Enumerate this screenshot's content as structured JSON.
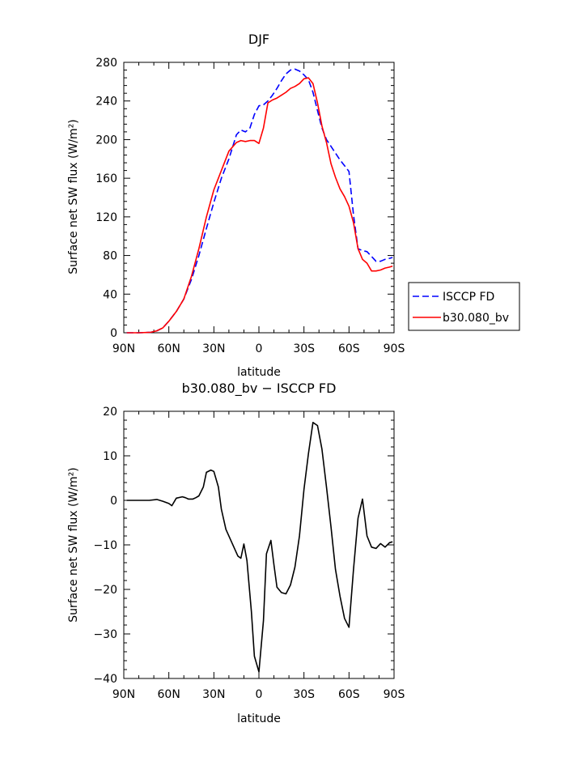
{
  "chart_data": [
    {
      "type": "line",
      "title": "DJF",
      "xlabel": "latitude",
      "ylabel": "Surface net SW flux (W/m²)",
      "x_ticks": [
        "90N",
        "60N",
        "30N",
        "0",
        "30S",
        "60S",
        "90S"
      ],
      "xlim": [
        -90,
        90
      ],
      "ylim": [
        0,
        280
      ],
      "y_ticks": [
        0,
        40,
        80,
        120,
        160,
        200,
        240,
        280
      ],
      "x_note": "x values are latitude in degrees; negative = N, positive = S",
      "legend_position": "right",
      "series": [
        {
          "name": "ISCCP FD",
          "color": "#0000ff",
          "dash": "dashed",
          "x": [
            -88,
            -80,
            -72,
            -68,
            -64,
            -60,
            -55,
            -50,
            -45,
            -40,
            -35,
            -30,
            -25,
            -20,
            -15,
            -12,
            -9,
            -6,
            -3,
            0,
            3,
            6,
            9,
            12,
            15,
            18,
            21,
            24,
            27,
            30,
            33,
            36,
            39,
            42,
            45,
            48,
            51,
            54,
            57,
            60,
            63,
            66,
            69,
            72,
            75,
            78,
            81,
            84,
            87,
            89
          ],
          "y": [
            0,
            0,
            0.5,
            2,
            5,
            12,
            22,
            35,
            55,
            80,
            108,
            135,
            160,
            180,
            205,
            210,
            208,
            212,
            226,
            235,
            236,
            240,
            246,
            253,
            261,
            268,
            272,
            273,
            271,
            267,
            262,
            249,
            230,
            212,
            200,
            193,
            186,
            179,
            173,
            167,
            122,
            87,
            85,
            84,
            79,
            74,
            74,
            76,
            77,
            78
          ]
        },
        {
          "name": "b30.080_bv",
          "color": "#ff0000",
          "dash": "solid",
          "x": [
            -88,
            -80,
            -72,
            -68,
            -64,
            -60,
            -55,
            -50,
            -45,
            -40,
            -35,
            -30,
            -25,
            -20,
            -15,
            -12,
            -9,
            -6,
            -3,
            0,
            3,
            6,
            9,
            12,
            15,
            18,
            21,
            24,
            27,
            30,
            33,
            36,
            39,
            42,
            45,
            48,
            51,
            54,
            57,
            60,
            63,
            66,
            69,
            72,
            75,
            78,
            81,
            84,
            87,
            89
          ],
          "y": [
            0,
            0,
            0.5,
            2,
            5,
            12,
            22,
            35,
            58,
            87,
            120,
            148,
            168,
            188,
            197,
            199,
            198,
            199,
            199,
            196,
            212,
            238,
            241,
            243,
            246,
            249,
            253,
            255,
            258,
            263,
            264,
            258,
            238,
            214,
            197,
            175,
            161,
            149,
            141,
            131,
            114,
            87,
            76,
            72,
            64,
            64,
            65,
            67,
            68,
            69
          ]
        }
      ]
    },
    {
      "type": "line",
      "title": "b30.080_bv − ISCCP FD",
      "xlabel": "latitude",
      "ylabel": "Surface net SW flux (W/m²)",
      "x_ticks": [
        "90N",
        "60N",
        "30N",
        "0",
        "30S",
        "60S",
        "90S"
      ],
      "xlim": [
        -90,
        90
      ],
      "ylim": [
        -40,
        20
      ],
      "y_ticks": [
        -40,
        -30,
        -20,
        -10,
        0,
        10,
        20
      ],
      "x_note": "x values are latitude in degrees; negative = N, positive = S",
      "series": [
        {
          "color": "#000000",
          "dash": "solid",
          "x": [
            -88,
            -80,
            -73,
            -68,
            -64,
            -60,
            -58,
            -55,
            -51,
            -49,
            -47,
            -44,
            -42,
            -40,
            -37,
            -35,
            -32,
            -30,
            -27,
            -25,
            -22,
            -18,
            -14,
            -12,
            -10,
            -8,
            -5,
            -3,
            0,
            3,
            5,
            8,
            10,
            12,
            15,
            18,
            21,
            24,
            27,
            30,
            33,
            36,
            39,
            42,
            45,
            48,
            51,
            54,
            57,
            60,
            63,
            66,
            69,
            72,
            75,
            78,
            81,
            84,
            87,
            89
          ],
          "y": [
            0,
            0,
            0,
            0.2,
            -0.2,
            -0.7,
            -1.2,
            0.5,
            0.8,
            0.6,
            0.3,
            0.3,
            0.6,
            1.0,
            3.0,
            6.3,
            6.8,
            6.5,
            3.0,
            -2.0,
            -6.5,
            -9.5,
            -12.5,
            -13.0,
            -9.8,
            -13.5,
            -25.0,
            -35.0,
            -38.5,
            -27.0,
            -12.0,
            -9.0,
            -14.5,
            -19.5,
            -20.7,
            -21.0,
            -19.0,
            -15.0,
            -8.0,
            2.5,
            10.5,
            17.5,
            16.8,
            11.5,
            3.0,
            -6.0,
            -15.5,
            -21.5,
            -26.5,
            -28.5,
            -15.5,
            -4.0,
            0.3,
            -8.0,
            -10.5,
            -10.8,
            -9.7,
            -10.5,
            -9.5,
            -9.3
          ]
        }
      ]
    }
  ]
}
